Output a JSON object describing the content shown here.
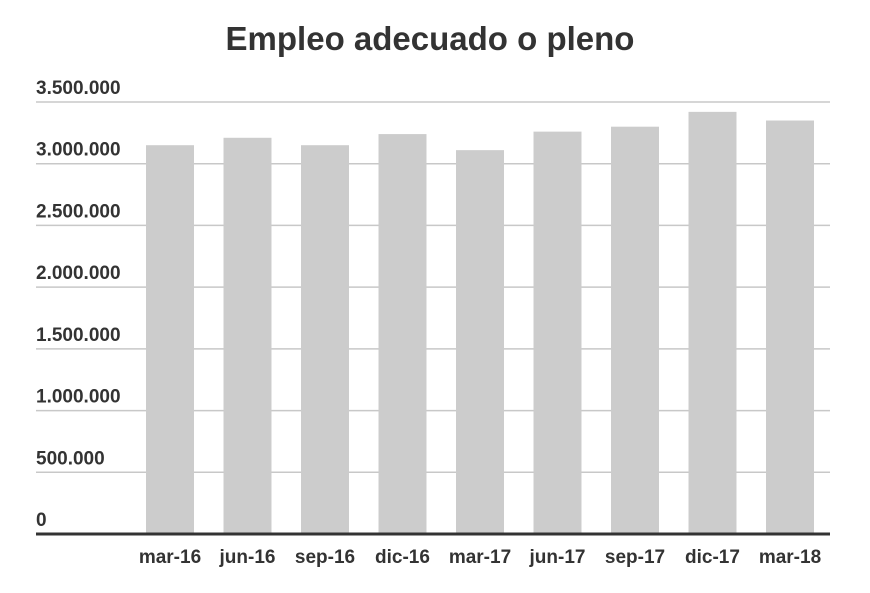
{
  "chart_data": {
    "type": "bar",
    "title": "Empleo adecuado o pleno",
    "xlabel": "",
    "ylabel": "",
    "categories": [
      "mar-16",
      "jun-16",
      "sep-16",
      "dic-16",
      "mar-17",
      "jun-17",
      "sep-17",
      "dic-17",
      "mar-18"
    ],
    "values": [
      3150000,
      3210000,
      3150000,
      3240000,
      3110000,
      3260000,
      3300000,
      3420000,
      3350000
    ],
    "ylim": [
      0,
      3500000
    ],
    "y_ticks": [
      0,
      500000,
      1000000,
      1500000,
      2000000,
      2500000,
      3000000,
      3500000
    ],
    "y_tick_labels": [
      "0",
      "500.000",
      "1.000.000",
      "1.500.000",
      "2.000.000",
      "2.500.000",
      "3.000.000",
      "3.500.000"
    ],
    "grid": true,
    "legend": "none",
    "colors": {
      "bar": "#cccccc",
      "text": "#333333",
      "grid": "#c8c8c8",
      "axis": "#333333"
    }
  }
}
